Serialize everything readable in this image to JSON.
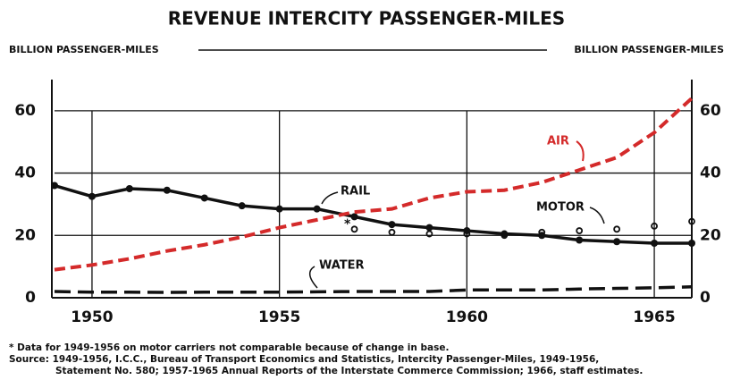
{
  "chart_data": {
    "type": "line",
    "title": "REVENUE INTERCITY PASSENGER-MILES",
    "y_label": "BILLION PASSENGER-MILES",
    "y2_label": "BILLION PASSENGER-MILES",
    "x": [
      1949,
      1950,
      1951,
      1952,
      1953,
      1954,
      1955,
      1956,
      1957,
      1958,
      1959,
      1960,
      1961,
      1962,
      1963,
      1964,
      1965,
      1966
    ],
    "xlim": [
      1949,
      1966
    ],
    "xticks": [
      1950,
      1955,
      1960,
      1965
    ],
    "ylim": [
      0,
      70
    ],
    "yticks": [
      0,
      20,
      40,
      60
    ],
    "y2lim": [
      0,
      70
    ],
    "y2ticks": [
      0,
      20,
      40,
      60
    ],
    "grid": true,
    "series": [
      {
        "name": "RAIL",
        "color": "#111111",
        "style": "solid",
        "values": [
          36,
          32.5,
          35,
          34.5,
          32,
          29.5,
          28.5,
          28.5,
          26,
          23.5,
          22.5,
          21.5,
          20.5,
          20,
          18.5,
          18,
          17.5,
          17.5
        ]
      },
      {
        "name": "AIR",
        "color": "#d42a2a",
        "style": "dashed",
        "values": [
          9,
          10.5,
          12.5,
          15,
          17,
          19.5,
          22.5,
          25,
          27.5,
          28.5,
          32,
          34,
          34.5,
          37,
          41,
          45,
          53,
          64
        ]
      },
      {
        "name": "MOTOR",
        "color": "#111111",
        "style": "dotted",
        "values": [
          null,
          null,
          null,
          null,
          null,
          null,
          null,
          null,
          22,
          21,
          20.5,
          20.5,
          20,
          21,
          21.5,
          22,
          23,
          24.5
        ]
      },
      {
        "name": "WATER",
        "color": "#111111",
        "style": "longdash",
        "values": [
          2,
          1.8,
          1.8,
          1.7,
          1.8,
          1.8,
          1.8,
          1.9,
          2,
          2,
          2,
          2.5,
          2.5,
          2.5,
          2.8,
          3,
          3.2,
          3.5
        ]
      }
    ],
    "annotations": [
      "*"
    ],
    "footnotes": [
      "* Data for 1949-1956 on motor carriers not comparable because of change in base.",
      "Source: 1949-1956, I.C.C., Bureau of Transport Economics and Statistics, Intercity Passenger-Miles, 1949-1956,",
      "Statement No. 580; 1957-1965 Annual Reports of the Interstate Commerce Commission; 1966, staff estimates."
    ]
  }
}
